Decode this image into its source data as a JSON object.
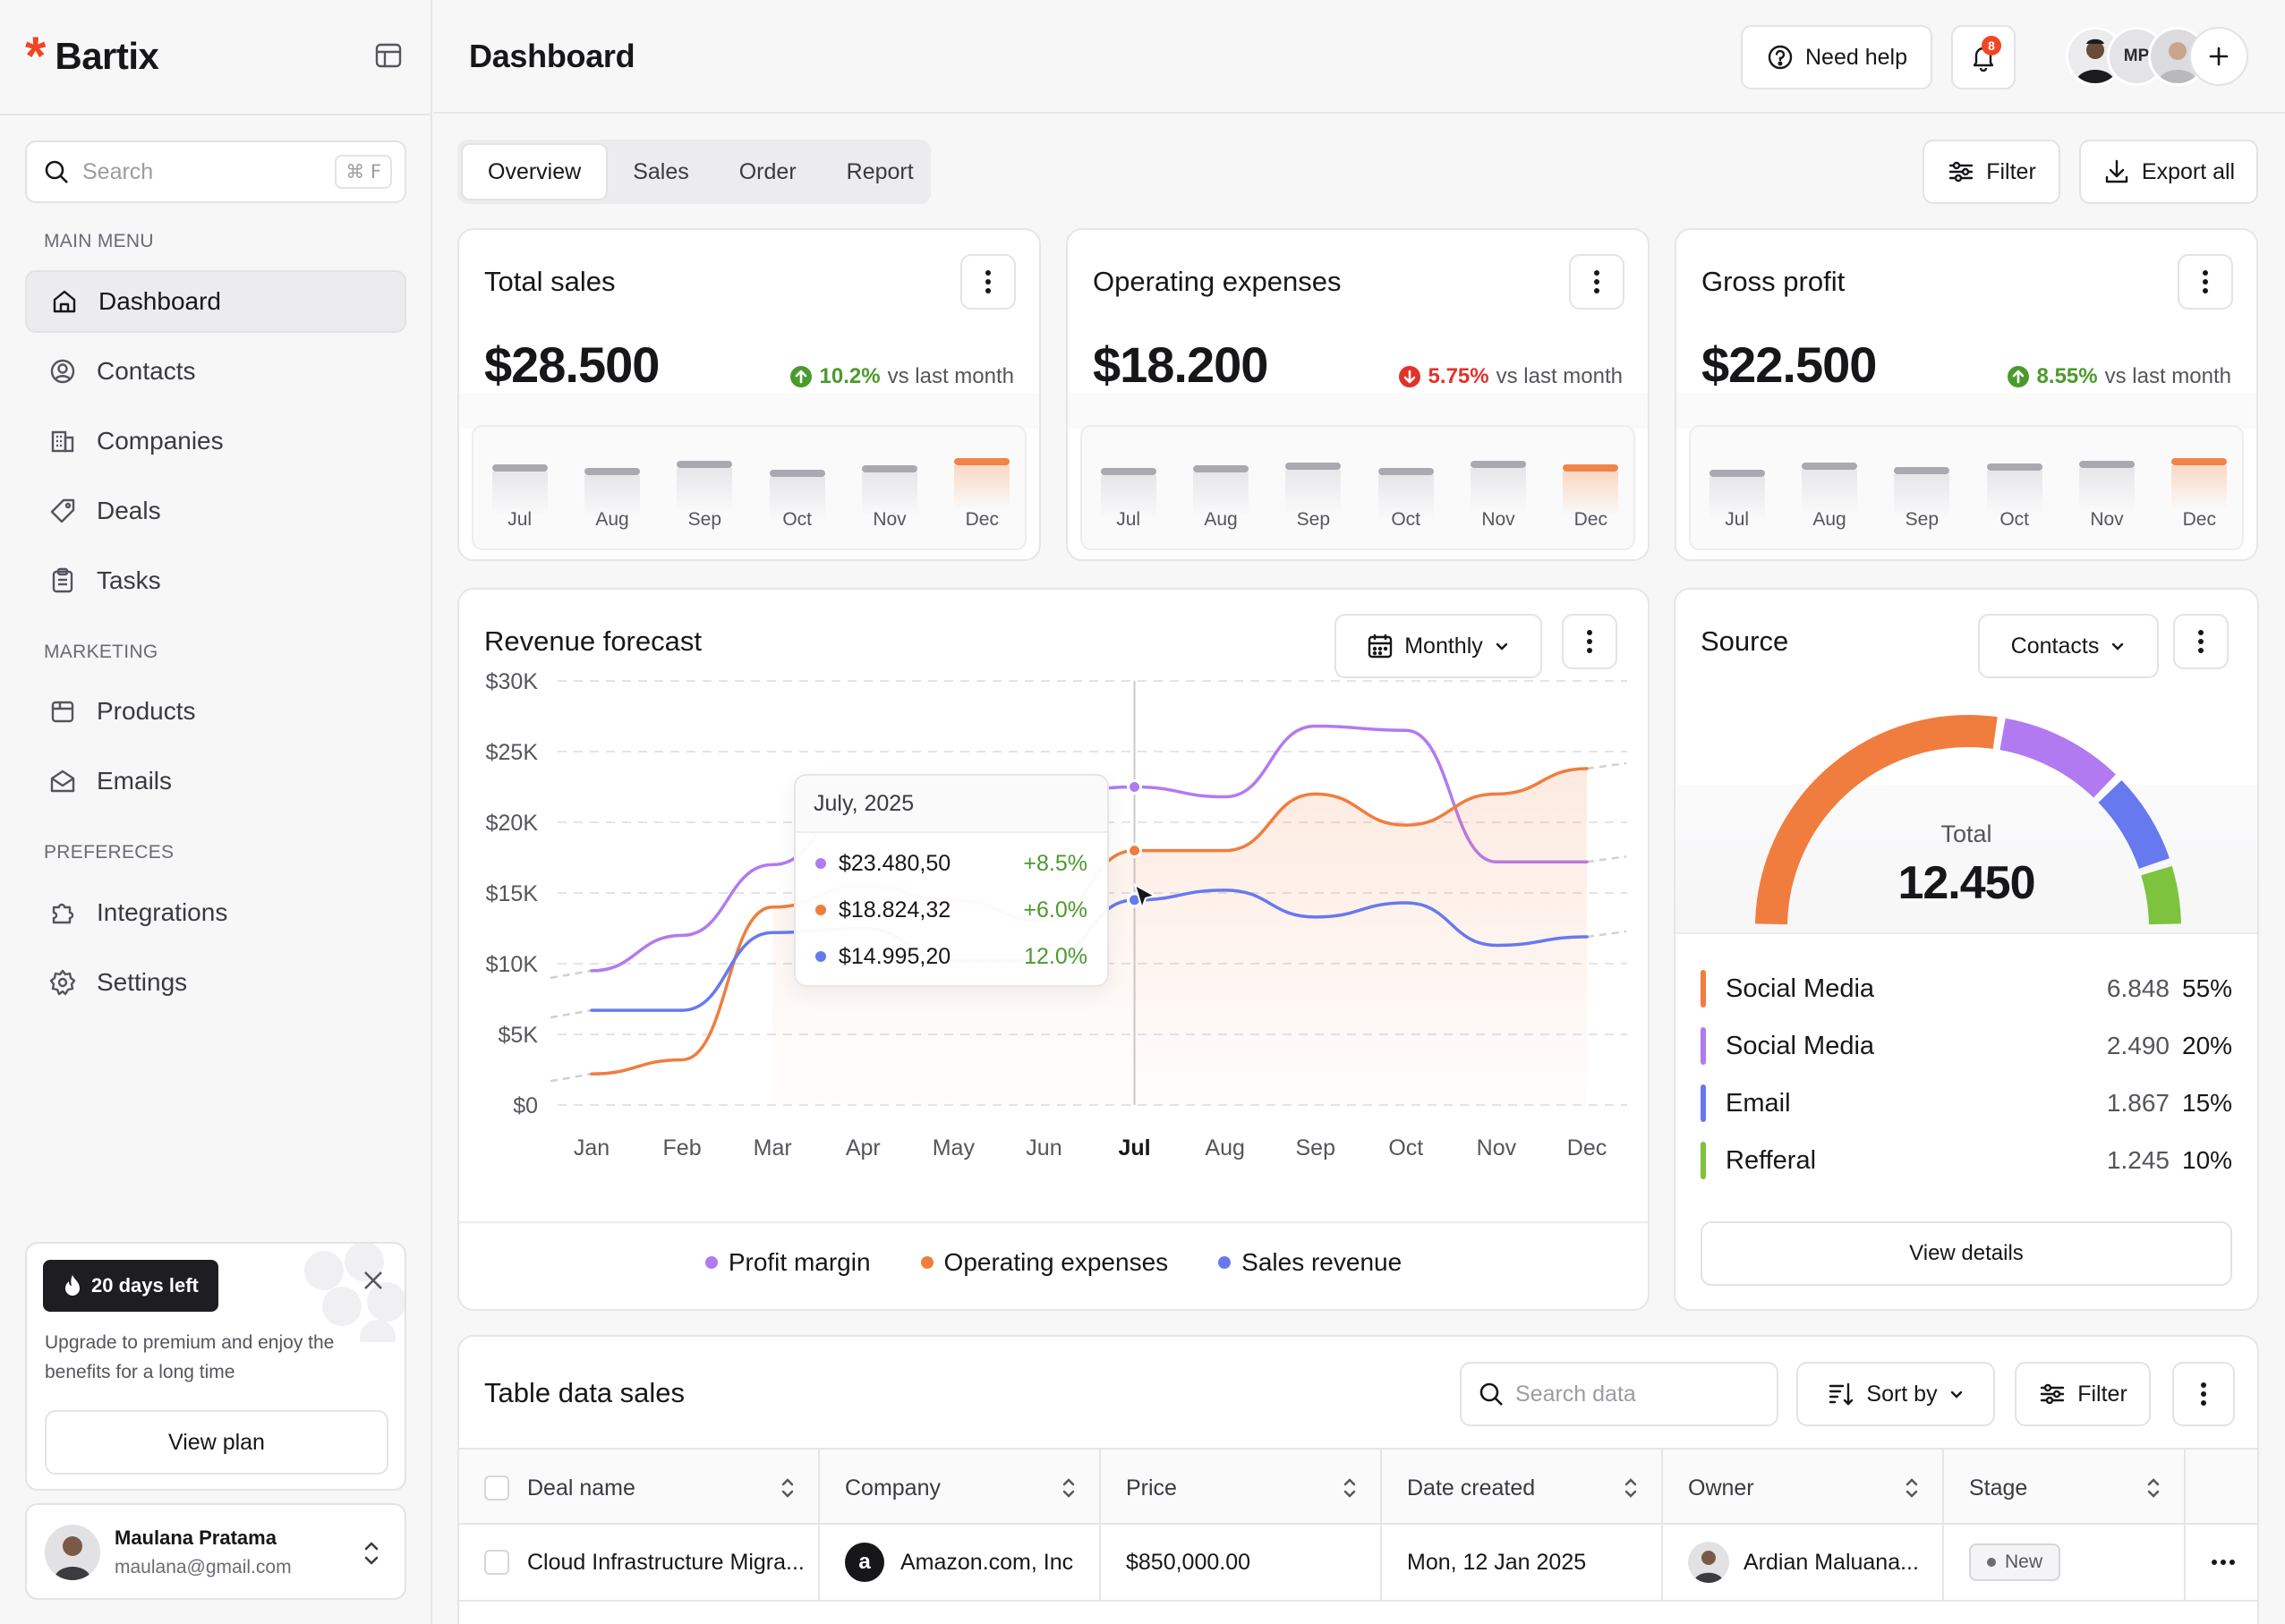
{
  "brand": {
    "name": "Bartix"
  },
  "search": {
    "placeholder": "Search",
    "shortcut": "⌘ F"
  },
  "sidebar": {
    "sections": [
      "MAIN MENU",
      "MARKETING",
      "PREFERECES"
    ],
    "main": [
      {
        "label": "Dashboard"
      },
      {
        "label": "Contacts"
      },
      {
        "label": "Companies"
      },
      {
        "label": "Deals"
      },
      {
        "label": "Tasks"
      }
    ],
    "marketing": [
      {
        "label": "Products"
      },
      {
        "label": "Emails"
      }
    ],
    "prefs": [
      {
        "label": "Integrations"
      },
      {
        "label": "Settings"
      }
    ]
  },
  "promo": {
    "badge": "20 days left",
    "text": "Upgrade to premium and enjoy the benefits for a long time",
    "button": "View plan"
  },
  "user": {
    "name": "Maulana Pratama",
    "email": "maulana@gmail.com"
  },
  "header": {
    "title": "Dashboard",
    "help": "Need help",
    "notifications": "8",
    "avatar_initials": "MP"
  },
  "tabs": [
    "Overview",
    "Sales",
    "Order",
    "Report"
  ],
  "actions": {
    "filter": "Filter",
    "export": "Export all"
  },
  "kpis": [
    {
      "title": "Total sales",
      "value": "$28.500",
      "delta": "10.2%",
      "direction": "up",
      "suffix": "vs last month",
      "months": [
        "Jul",
        "Aug",
        "Sep",
        "Oct",
        "Nov",
        "Dec"
      ],
      "levels": [
        0.45,
        0.35,
        0.55,
        0.3,
        0.42,
        0.62
      ]
    },
    {
      "title": "Operating expenses",
      "value": "$18.200",
      "delta": "5.75%",
      "direction": "down",
      "suffix": "vs last month",
      "months": [
        "Jul",
        "Aug",
        "Sep",
        "Oct",
        "Nov",
        "Dec"
      ],
      "levels": [
        0.35,
        0.42,
        0.5,
        0.35,
        0.55,
        0.45
      ]
    },
    {
      "title": "Gross profit",
      "value": "$22.500",
      "delta": "8.55%",
      "direction": "up",
      "suffix": "vs last month",
      "months": [
        "Jul",
        "Aug",
        "Sep",
        "Oct",
        "Nov",
        "Dec"
      ],
      "levels": [
        0.3,
        0.5,
        0.38,
        0.48,
        0.55,
        0.62
      ]
    }
  ],
  "colors": {
    "up": "#4b9a2c",
    "down": "#e0322b",
    "orange": "#f07d3e",
    "purple": "#b27af0",
    "blue": "#6779ef",
    "green": "#7ec33d"
  },
  "forecast": {
    "title": "Revenue forecast",
    "period": "Monthly"
  },
  "chart_data": {
    "type": "line",
    "title": "Revenue forecast",
    "categories": [
      "Jan",
      "Feb",
      "Mar",
      "Apr",
      "May",
      "Jun",
      "Jul",
      "Aug",
      "Sep",
      "Oct",
      "Nov",
      "Dec"
    ],
    "y_ticks": [
      "$30K",
      "$25K",
      "$20K",
      "$15K",
      "$10K",
      "$5K",
      "$0"
    ],
    "ylim": [
      0,
      30000
    ],
    "highlight_category": "Jul",
    "series": [
      {
        "name": "Profit margin",
        "color": "#b27af0",
        "values": [
          9500,
          12000,
          17000,
          21500,
          21000,
          22000,
          22500,
          21800,
          26800,
          26500,
          17200,
          17200
        ]
      },
      {
        "name": "Operating expenses",
        "color": "#f07d3e",
        "values": [
          2200,
          3200,
          14000,
          15500,
          14500,
          13000,
          18000,
          18000,
          22000,
          19800,
          22000,
          23800
        ]
      },
      {
        "name": "Sales revenue",
        "color": "#6779ef",
        "values": [
          6700,
          6700,
          12200,
          12500,
          10200,
          10200,
          14500,
          15200,
          13300,
          14300,
          11300,
          11900
        ]
      }
    ],
    "tooltip": {
      "title": "July, 2025",
      "rows": [
        {
          "value": "$23.480,50",
          "change": "+8.5%"
        },
        {
          "value": "$18.824,32",
          "change": "+6.0%"
        },
        {
          "value": "$14.995,20",
          "change": "12.0%"
        }
      ]
    },
    "legend_position": "bottom"
  },
  "source": {
    "title": "Source",
    "filter": "Contacts",
    "total_label": "Total",
    "total": "12.450",
    "view": "View details",
    "rows": [
      {
        "label": "Social Media",
        "count": "6.848",
        "pct": "55%",
        "color": "#f07d3e",
        "share": 55
      },
      {
        "label": "Social Media",
        "count": "2.490",
        "pct": "20%",
        "color": "#b27af0",
        "share": 20
      },
      {
        "label": "Email",
        "count": "1.867",
        "pct": "15%",
        "color": "#6779ef",
        "share": 15
      },
      {
        "label": "Refferal",
        "count": "1.245",
        "pct": "10%",
        "color": "#7ec33d",
        "share": 10
      }
    ]
  },
  "table": {
    "title": "Table data sales",
    "search_placeholder": "Search data",
    "sort": "Sort by",
    "filter": "Filter",
    "columns": [
      "Deal name",
      "Company",
      "Price",
      "Date created",
      "Owner",
      "Stage"
    ],
    "rows": [
      {
        "deal": "Cloud Infrastructure Migra...",
        "company": "Amazon.com, Inc",
        "price": "$850,000.00",
        "date": "Mon, 12 Jan 2025",
        "owner": "Ardian Maluana...",
        "stage": "New"
      }
    ]
  }
}
